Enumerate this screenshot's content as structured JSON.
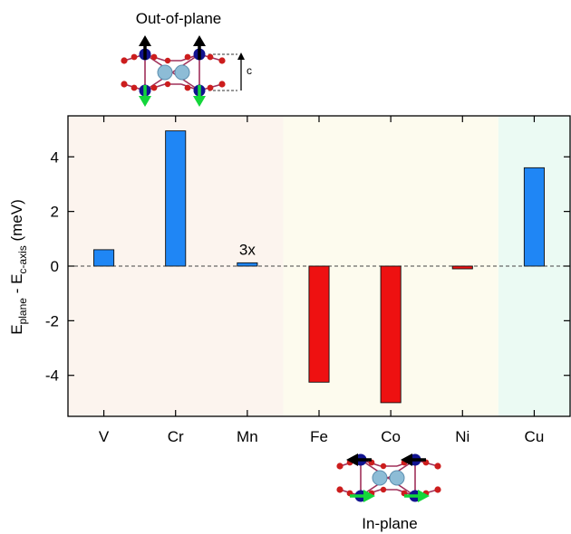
{
  "chart_data": {
    "type": "bar",
    "categories": [
      "V",
      "Cr",
      "Mn",
      "Fe",
      "Co",
      "Ni",
      "Cu"
    ],
    "values": [
      0.6,
      4.95,
      0.12,
      -4.25,
      -5.0,
      -0.1,
      3.6
    ],
    "ylabel_main": "E",
    "ylabel_sub1": "plane",
    "ylabel_mid": " - E",
    "ylabel_sub2": "c-axis",
    "ylabel_unit": " (meV)",
    "ylim": [
      -5.5,
      5.5
    ],
    "yticks": [
      "4",
      "2",
      "0",
      "-2",
      "-4"
    ],
    "ytick_values": [
      4,
      2,
      0,
      -2,
      -4
    ],
    "annotations": [
      {
        "text": "3x",
        "category": "Mn"
      }
    ],
    "region_colors": [
      "#fcf4ee",
      "#fdfbee",
      "#ebfaf3"
    ],
    "region_spans": [
      [
        0,
        3
      ],
      [
        3,
        6
      ],
      [
        6,
        7
      ]
    ],
    "colors": {
      "positive": "#1f86f5",
      "negative": "#ee1111"
    },
    "zero_line": "dashed",
    "grid": false
  },
  "insets": {
    "top_label": "Out-of-plane",
    "top_axis_label": "c",
    "bottom_label": "In-plane"
  }
}
